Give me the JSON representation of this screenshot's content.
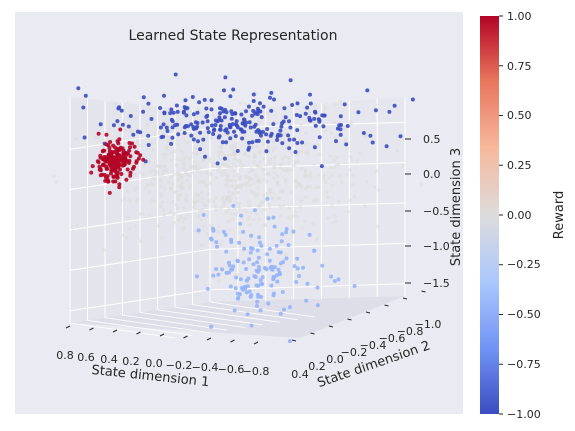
{
  "chart_data": {
    "type": "scatter3d",
    "title": "Learned State Representation",
    "xlabel": "State dimension 1",
    "ylabel": "State dimension 2",
    "zlabel": "State dimension 3",
    "xticks": [
      "0.8",
      "0.6",
      "0.4",
      "0.2",
      "0.0",
      "−0.2",
      "−0.4",
      "−0.6",
      "−0.8"
    ],
    "yticks": [
      "0.4",
      "0.2",
      "0.0",
      "−0.2",
      "−0.4",
      "−0.6",
      "−0.8",
      "−1.0"
    ],
    "zticks": [
      "0.5",
      "0.0",
      "−0.5",
      "−1.0",
      "−1.5"
    ],
    "colorbar": {
      "label": "Reward",
      "range": [
        -1.0,
        1.0
      ],
      "ticks": [
        "1.00",
        "0.75",
        "0.50",
        "0.25",
        "0.00",
        "−0.25",
        "−0.50",
        "−0.75",
        "−1.00"
      ],
      "colormap": "coolwarm",
      "colors": [
        "#3b4cc0",
        "#6f92f3",
        "#aac7fd",
        "#dddcdc",
        "#f7b89c",
        "#e7745b",
        "#b40426"
      ]
    },
    "clusters": [
      {
        "reward": 1.0,
        "center": [
          0.75,
          -0.1,
          0.0
        ],
        "spread": [
          0.06,
          0.08,
          0.12
        ],
        "count": 180
      },
      {
        "reward": -1.0,
        "center": [
          0.0,
          -0.3,
          0.45
        ],
        "spread": [
          0.4,
          0.25,
          0.15
        ],
        "count": 260
      },
      {
        "reward": 0.0,
        "center": [
          0.0,
          -0.25,
          -0.2
        ],
        "spread": [
          0.4,
          0.3,
          0.35
        ],
        "count": 700
      },
      {
        "reward": -0.45,
        "center": [
          -0.15,
          -0.3,
          -1.3
        ],
        "spread": [
          0.18,
          0.15,
          0.3
        ],
        "count": 150
      }
    ],
    "grid": true,
    "background": "#eaeaf2"
  }
}
